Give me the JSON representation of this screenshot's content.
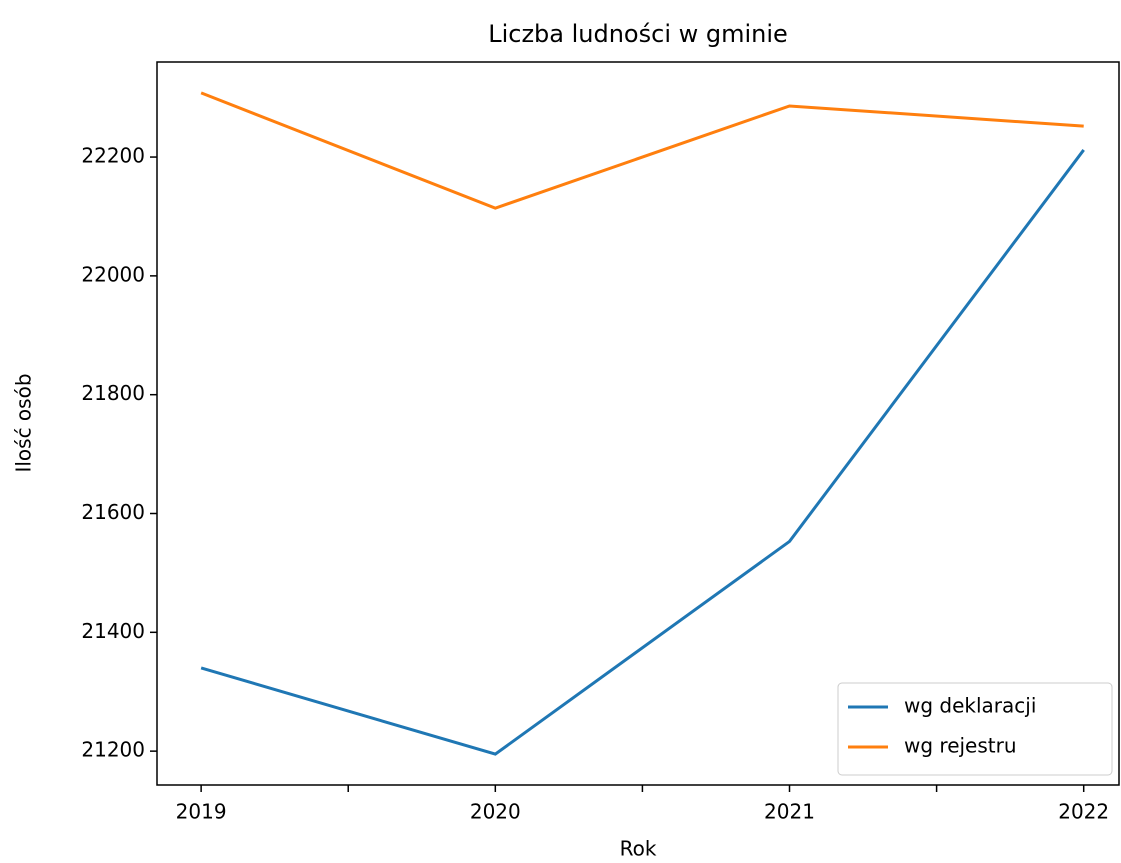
{
  "chart_data": {
    "type": "line",
    "title": "Liczba ludności w gminie",
    "xlabel": "Rok",
    "ylabel": "Ilość osób",
    "x": [
      2019,
      2020,
      2021,
      2022
    ],
    "series": [
      {
        "name": "wg deklaracji",
        "color": "#1f77b4",
        "values": [
          21340,
          21195,
          21553,
          22212
        ]
      },
      {
        "name": "wg rejestru",
        "color": "#ff7f0e",
        "values": [
          22308,
          22114,
          22286,
          22252
        ]
      }
    ],
    "xlim": [
      2018.85,
      2022.12
    ],
    "xticks": [
      2019,
      2020,
      2021,
      2022
    ],
    "xminor_ticks": [
      2019.5,
      2020.5,
      2021.5
    ],
    "ylim": [
      21143,
      22360
    ],
    "yticks": [
      21200,
      21400,
      21600,
      21800,
      22000,
      22200
    ],
    "legend": "lower right"
  }
}
